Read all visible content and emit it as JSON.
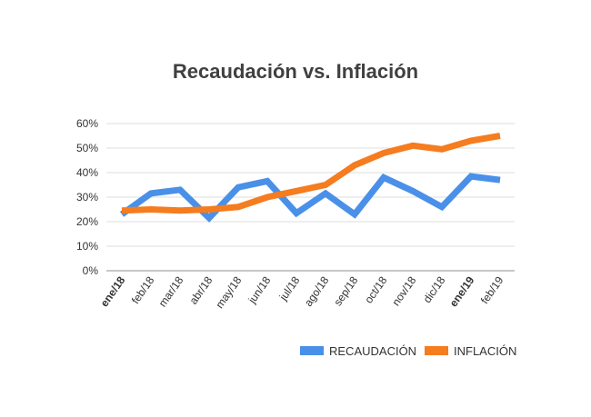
{
  "chart_data": {
    "type": "line",
    "title": "Recaudación vs. Inflación",
    "categories": [
      "ene/18",
      "feb/18",
      "mar/18",
      "abr/18",
      "may/18",
      "jun/18",
      "jul/18",
      "ago/18",
      "sep/18",
      "oct/18",
      "nov/18",
      "dic/18",
      "ene/19",
      "feb/19"
    ],
    "bold_categories": [
      "ene/18",
      "ene/19"
    ],
    "y_ticks": [
      "0%",
      "10%",
      "20%",
      "30%",
      "40%",
      "50%",
      "60%"
    ],
    "ylim": [
      0,
      60
    ],
    "grid": true,
    "legend_position": "bottom-right",
    "series": [
      {
        "name": "RECAUDACIÓN",
        "color": "#4a90e8",
        "values": [
          23,
          31.5,
          33,
          21.5,
          34,
          36.5,
          23.5,
          31.5,
          23,
          38,
          32.5,
          26,
          38.5,
          37
        ]
      },
      {
        "name": "INFLACIÓN",
        "color": "#f57c1f",
        "values": [
          24.5,
          25,
          24.5,
          25,
          26,
          30,
          32.5,
          35,
          43,
          48,
          51,
          49.5,
          53,
          55
        ]
      }
    ]
  }
}
